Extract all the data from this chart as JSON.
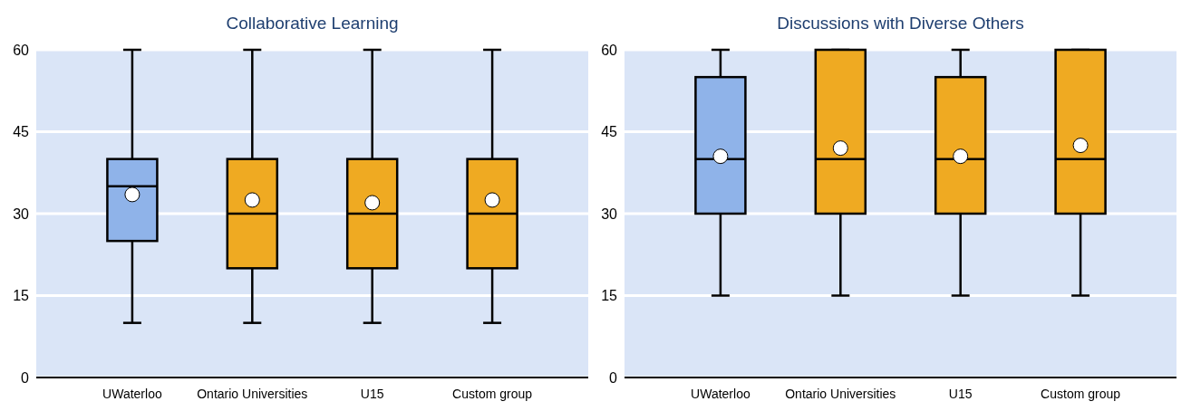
{
  "chart_data": [
    {
      "type": "box",
      "title": "Collaborative Learning",
      "categories": [
        "UWaterloo",
        "Ontario Universities",
        "U15",
        "Custom group"
      ],
      "colors": [
        "#8fb3e9",
        "#efaa22",
        "#efaa22",
        "#efaa22"
      ],
      "ylim": [
        0,
        60
      ],
      "yticks": [
        0,
        15,
        30,
        45,
        60
      ],
      "grid": "y",
      "marker": "circle",
      "boxes": [
        {
          "low": 10,
          "q1": 25,
          "median": 35,
          "q3": 40,
          "high": 60,
          "mean": 33.5
        },
        {
          "low": 10,
          "q1": 20,
          "median": 30,
          "q3": 40,
          "high": 60,
          "mean": 32.5
        },
        {
          "low": 10,
          "q1": 20,
          "median": 30,
          "q3": 40,
          "high": 60,
          "mean": 32
        },
        {
          "low": 10,
          "q1": 20,
          "median": 30,
          "q3": 40,
          "high": 60,
          "mean": 32.5
        }
      ]
    },
    {
      "type": "box",
      "title": "Discussions with Diverse Others",
      "categories": [
        "UWaterloo",
        "Ontario Universities",
        "U15",
        "Custom group"
      ],
      "colors": [
        "#8fb3e9",
        "#efaa22",
        "#efaa22",
        "#efaa22"
      ],
      "ylim": [
        0,
        60
      ],
      "yticks": [
        0,
        15,
        30,
        45,
        60
      ],
      "grid": "y",
      "marker": "circle",
      "boxes": [
        {
          "low": 15,
          "q1": 30,
          "median": 40,
          "q3": 55,
          "high": 60,
          "mean": 40.5
        },
        {
          "low": 15,
          "q1": 30,
          "median": 40,
          "q3": 60,
          "high": 60,
          "mean": 42
        },
        {
          "low": 15,
          "q1": 30,
          "median": 40,
          "q3": 55,
          "high": 60,
          "mean": 40.5
        },
        {
          "low": 15,
          "q1": 30,
          "median": 40,
          "q3": 60,
          "high": 60,
          "mean": 42.5
        }
      ]
    }
  ]
}
